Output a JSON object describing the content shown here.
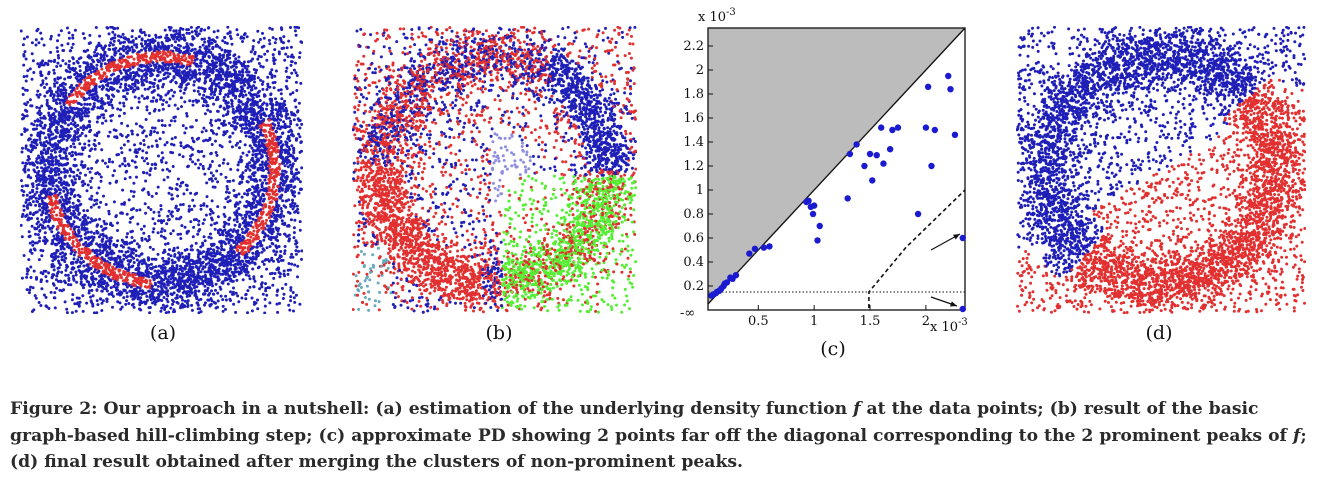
{
  "panels": [
    {
      "id": "a",
      "label": "(a)"
    },
    {
      "id": "b",
      "label": "(b)"
    },
    {
      "id": "c",
      "label": "(c)"
    },
    {
      "id": "d",
      "label": "(d)"
    }
  ],
  "colors": {
    "blue": "#1f1fb8",
    "red": "#e23030",
    "green": "#55ee33",
    "lavender": "#8f8fe0",
    "teal": "#66aabb",
    "gray_region": "#bdbcbc"
  },
  "chart_data": {
    "type": "scatter",
    "title": "",
    "xlabel": "",
    "ylabel": "",
    "x_scale_label": "x 10",
    "y_scale_label": "x 10",
    "scale_exponent": "-3",
    "xlim": [
      0.05,
      2.35
    ],
    "ylim": [
      0.0,
      2.35
    ],
    "xticks": [
      {
        "v": 0.5,
        "label": "0.5"
      },
      {
        "v": 1.0,
        "label": "1"
      },
      {
        "v": 1.5,
        "label": "1.5"
      },
      {
        "v": 2.0,
        "label": "2"
      }
    ],
    "yticks": [
      {
        "v": 0.2,
        "label": "0.2"
      },
      {
        "v": 0.4,
        "label": "0.4"
      },
      {
        "v": 0.6,
        "label": "0.6"
      },
      {
        "v": 0.8,
        "label": "0.8"
      },
      {
        "v": 1.0,
        "label": "1"
      },
      {
        "v": 1.2,
        "label": "1.2"
      },
      {
        "v": 1.4,
        "label": "1.4"
      },
      {
        "v": 1.6,
        "label": "1.6"
      },
      {
        "v": 1.8,
        "label": "1.8"
      },
      {
        "v": 2.0,
        "label": "2"
      },
      {
        "v": 2.2,
        "label": "2.2"
      }
    ],
    "y_infinity_label": "-∞",
    "threshold_y": 0.15,
    "diagonal_shaded": true,
    "points": [
      [
        0.08,
        0.12
      ],
      [
        0.1,
        0.13
      ],
      [
        0.12,
        0.14
      ],
      [
        0.13,
        0.15
      ],
      [
        0.15,
        0.16
      ],
      [
        0.17,
        0.18
      ],
      [
        0.19,
        0.2
      ],
      [
        0.2,
        0.22
      ],
      [
        0.22,
        0.23
      ],
      [
        0.25,
        0.27
      ],
      [
        0.27,
        0.26
      ],
      [
        0.3,
        0.29
      ],
      [
        0.42,
        0.47
      ],
      [
        0.47,
        0.51
      ],
      [
        0.55,
        0.52
      ],
      [
        0.6,
        0.53
      ],
      [
        0.93,
        0.9
      ],
      [
        0.95,
        0.91
      ],
      [
        0.97,
        0.86
      ],
      [
        0.99,
        0.8
      ],
      [
        1.0,
        0.87
      ],
      [
        1.03,
        0.58
      ],
      [
        1.05,
        0.7
      ],
      [
        1.3,
        0.93
      ],
      [
        1.32,
        1.3
      ],
      [
        1.38,
        1.38
      ],
      [
        1.45,
        1.2
      ],
      [
        1.5,
        1.3
      ],
      [
        1.52,
        1.08
      ],
      [
        1.56,
        1.29
      ],
      [
        1.6,
        1.52
      ],
      [
        1.62,
        1.22
      ],
      [
        1.68,
        1.34
      ],
      [
        1.7,
        1.5
      ],
      [
        1.75,
        1.52
      ],
      [
        1.93,
        0.8
      ],
      [
        2.0,
        1.52
      ],
      [
        2.02,
        1.86
      ],
      [
        2.05,
        1.2
      ],
      [
        2.08,
        1.5
      ],
      [
        2.2,
        1.95
      ],
      [
        2.22,
        1.84
      ],
      [
        2.26,
        1.46
      ],
      [
        2.33,
        0.6
      ]
    ],
    "infinite_points": [
      [
        2.33,
        0.0
      ]
    ]
  },
  "caption": {
    "lead": "Figure 2: Our approach in a nutshell: (a) estimation of the underlying density function ",
    "f1": "f",
    "mid": " at the data points; (b) result of the basic graph-based hill-climbing step; (c) approximate PD showing 2 points far off the diagonal corresponding to the 2 prominent peaks of ",
    "f2": "f",
    "tail": "; (d) final result obtained after merging the clusters of non-prominent peaks."
  }
}
